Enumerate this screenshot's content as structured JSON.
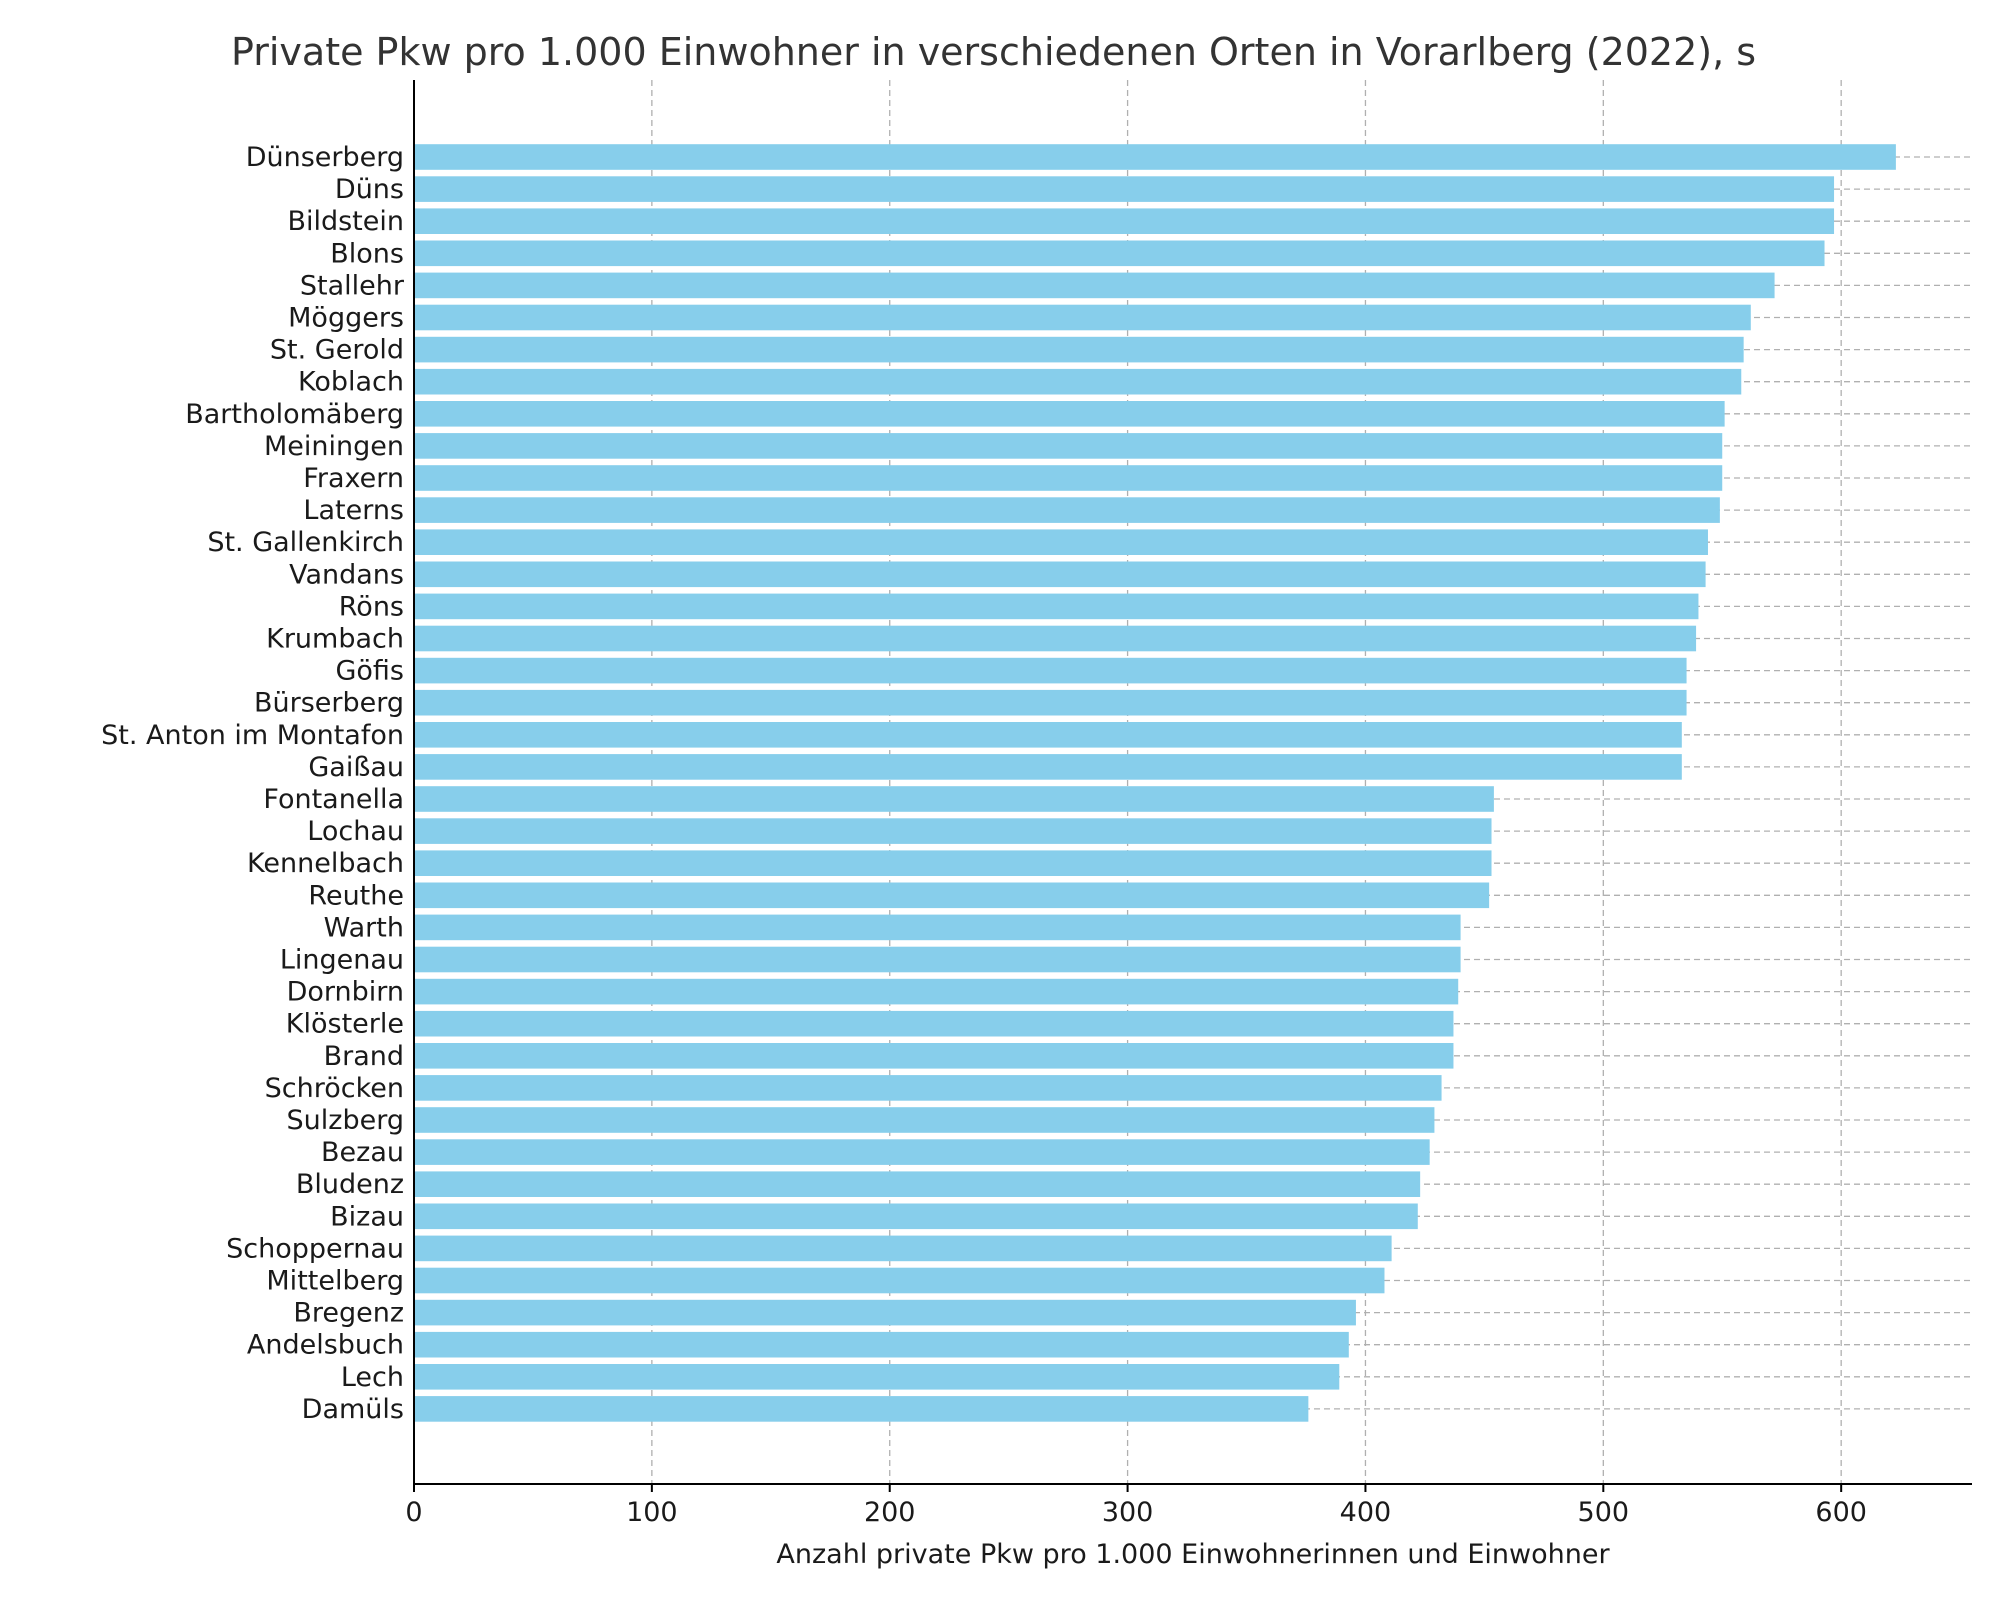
{
  "chart_data": {
    "type": "bar",
    "orientation": "horizontal",
    "title": "Private Pkw pro 1.000 Einwohner in verschiedenen Orten in Vorarlberg (2022), s",
    "xlabel": "Anzahl private Pkw pro 1.000 Einwohnerinnen und Einwohner",
    "ylabel": "",
    "xlim": [
      0,
      655
    ],
    "xticks": [
      0,
      100,
      200,
      300,
      400,
      500,
      600
    ],
    "grid": true,
    "bar_color": "#87CEEB",
    "categories": [
      "Dünserberg",
      "Düns",
      "Bildstein",
      "Blons",
      "Stallehr",
      "Möggers",
      "St. Gerold",
      "Koblach",
      "Bartholomäberg",
      "Meiningen",
      "Fraxern",
      "Laterns",
      "St. Gallenkirch",
      "Vandans",
      "Röns",
      "Krumbach",
      "Göfis",
      "Bürserberg",
      "St. Anton im Montafon",
      "Gaißau",
      "Fontanella",
      "Lochau",
      "Kennelbach",
      "Reuthe",
      "Warth",
      "Lingenau",
      "Dornbirn",
      "Klösterle",
      "Brand",
      "Schröcken",
      "Sulzberg",
      "Bezau",
      "Bludenz",
      "Bizau",
      "Schoppernau",
      "Mittelberg",
      "Bregenz",
      "Andelsbuch",
      "Lech",
      "Damüls"
    ],
    "values": [
      623,
      597,
      597,
      593,
      572,
      562,
      559,
      558,
      551,
      550,
      550,
      549,
      544,
      543,
      540,
      539,
      535,
      535,
      533,
      533,
      454,
      453,
      453,
      452,
      440,
      440,
      439,
      437,
      437,
      432,
      429,
      427,
      423,
      422,
      411,
      408,
      396,
      393,
      389,
      376
    ]
  }
}
